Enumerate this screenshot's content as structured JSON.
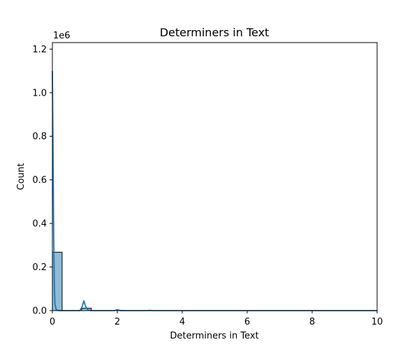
{
  "chart_data": {
    "type": "bar",
    "title": "Determiners in Text",
    "xlabel": "Determiners in Text",
    "ylabel": "Count",
    "y_multiplier_label": "1e6",
    "xlim": [
      0,
      10
    ],
    "ylim": [
      0,
      1.23
    ],
    "xticks": [
      0,
      2,
      4,
      6,
      8,
      10
    ],
    "yticks": [
      0.0,
      0.2,
      0.4,
      0.6,
      0.8,
      1.0,
      1.2
    ],
    "xtick_labels": [
      "0",
      "2",
      "4",
      "6",
      "8",
      "10"
    ],
    "ytick_labels": [
      "0.0",
      "0.2",
      "0.4",
      "0.6",
      "0.8",
      "1.0",
      "1.2"
    ],
    "grid": false,
    "bar_color": "#1f77b4",
    "bar_alpha": 0.5,
    "bins": [
      {
        "x0": 0.0,
        "x1": 0.3,
        "value": 0.268
      },
      {
        "x0": 0.9,
        "x1": 1.2,
        "value": 0.011
      },
      {
        "x0": 1.9,
        "x1": 2.2,
        "value": 0.001
      }
    ],
    "kde": {
      "color": "#1f77b4",
      "points": [
        [
          0.0,
          1.1
        ],
        [
          0.02,
          0.75
        ],
        [
          0.04,
          0.35
        ],
        [
          0.06,
          0.12
        ],
        [
          0.08,
          0.03
        ],
        [
          0.12,
          0.003
        ],
        [
          0.2,
          0.0
        ],
        [
          0.85,
          0.0
        ],
        [
          0.92,
          0.02
        ],
        [
          0.97,
          0.045
        ],
        [
          1.02,
          0.02
        ],
        [
          1.1,
          0.002
        ],
        [
          1.2,
          0.0
        ],
        [
          1.9,
          0.0
        ],
        [
          2.0,
          0.004
        ],
        [
          2.1,
          0.0
        ],
        [
          2.9,
          0.0
        ],
        [
          3.0,
          0.001
        ],
        [
          3.1,
          0.0
        ],
        [
          10.0,
          0.0
        ]
      ]
    }
  }
}
